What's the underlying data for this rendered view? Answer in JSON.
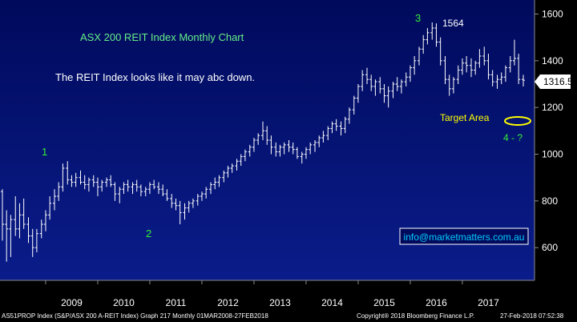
{
  "chart_data": {
    "type": "ohlc",
    "title": "ASX 200 REIT Index Monthly Chart",
    "annotation": "The REIT Index looks like it may abc down.",
    "x_labels": [
      "2009",
      "2010",
      "2011",
      "2012",
      "2013",
      "2014",
      "2015",
      "2016",
      "2017"
    ],
    "y_ticks": [
      600,
      800,
      1000,
      1200,
      1400,
      1600
    ],
    "ylim": [
      460,
      1660
    ],
    "grid": false,
    "last_value": "1316.5",
    "peak_label": "1564",
    "wave_labels": [
      "1",
      "2",
      "3",
      "4 - ?"
    ],
    "target_label": "Target Area",
    "website": "info@marketmatters.com.au",
    "series": [
      {
        "values": [
          [
            2008.17,
            840,
            850,
            630,
            700
          ],
          [
            2008.25,
            700,
            760,
            540,
            680
          ],
          [
            2008.33,
            680,
            740,
            560,
            720
          ],
          [
            2008.42,
            720,
            820,
            650,
            680
          ],
          [
            2008.5,
            680,
            790,
            640,
            740
          ],
          [
            2008.58,
            740,
            810,
            680,
            700
          ],
          [
            2008.67,
            700,
            730,
            620,
            650
          ],
          [
            2008.75,
            650,
            680,
            560,
            600
          ],
          [
            2008.83,
            600,
            680,
            580,
            660
          ],
          [
            2008.92,
            660,
            720,
            640,
            700
          ],
          [
            2009.0,
            700,
            760,
            670,
            740
          ],
          [
            2009.08,
            740,
            820,
            720,
            790
          ],
          [
            2009.17,
            790,
            850,
            760,
            820
          ],
          [
            2009.25,
            820,
            880,
            800,
            860
          ],
          [
            2009.33,
            860,
            960,
            840,
            940
          ],
          [
            2009.42,
            940,
            970,
            870,
            890
          ],
          [
            2009.5,
            890,
            910,
            860,
            880
          ],
          [
            2009.58,
            880,
            920,
            860,
            900
          ],
          [
            2009.67,
            900,
            930,
            870,
            880
          ],
          [
            2009.75,
            880,
            910,
            850,
            870
          ],
          [
            2009.83,
            870,
            900,
            840,
            890
          ],
          [
            2009.92,
            890,
            910,
            860,
            880
          ],
          [
            2010.0,
            880,
            900,
            820,
            860
          ],
          [
            2010.08,
            860,
            890,
            840,
            880
          ],
          [
            2010.17,
            880,
            900,
            860,
            890
          ],
          [
            2010.25,
            890,
            910,
            860,
            870
          ],
          [
            2010.33,
            870,
            880,
            800,
            830
          ],
          [
            2010.42,
            830,
            860,
            790,
            850
          ],
          [
            2010.5,
            850,
            880,
            830,
            870
          ],
          [
            2010.58,
            870,
            890,
            840,
            860
          ],
          [
            2010.67,
            860,
            880,
            830,
            870
          ],
          [
            2010.75,
            870,
            890,
            840,
            860
          ],
          [
            2010.83,
            860,
            870,
            820,
            840
          ],
          [
            2010.92,
            840,
            860,
            820,
            850
          ],
          [
            2011.0,
            850,
            880,
            830,
            870
          ],
          [
            2011.08,
            870,
            890,
            850,
            860
          ],
          [
            2011.17,
            860,
            880,
            830,
            850
          ],
          [
            2011.25,
            850,
            870,
            820,
            830
          ],
          [
            2011.33,
            830,
            850,
            800,
            810
          ],
          [
            2011.42,
            810,
            830,
            770,
            790
          ],
          [
            2011.5,
            790,
            810,
            760,
            780
          ],
          [
            2011.58,
            780,
            800,
            700,
            750
          ],
          [
            2011.67,
            750,
            790,
            720,
            770
          ],
          [
            2011.75,
            770,
            800,
            750,
            790
          ],
          [
            2011.83,
            790,
            810,
            770,
            800
          ],
          [
            2011.92,
            800,
            830,
            780,
            820
          ],
          [
            2012.0,
            820,
            840,
            800,
            830
          ],
          [
            2012.08,
            830,
            860,
            810,
            850
          ],
          [
            2012.17,
            850,
            880,
            830,
            870
          ],
          [
            2012.25,
            870,
            900,
            850,
            880
          ],
          [
            2012.33,
            880,
            910,
            860,
            900
          ],
          [
            2012.42,
            900,
            930,
            880,
            920
          ],
          [
            2012.5,
            920,
            950,
            900,
            940
          ],
          [
            2012.58,
            940,
            960,
            920,
            950
          ],
          [
            2012.67,
            950,
            980,
            930,
            970
          ],
          [
            2012.75,
            970,
            1000,
            950,
            990
          ],
          [
            2012.83,
            990,
            1020,
            970,
            1010
          ],
          [
            2012.92,
            1010,
            1040,
            990,
            1030
          ],
          [
            2013.0,
            1030,
            1070,
            1010,
            1060
          ],
          [
            2013.08,
            1060,
            1090,
            1040,
            1080
          ],
          [
            2013.17,
            1080,
            1140,
            1060,
            1100
          ],
          [
            2013.25,
            1100,
            1120,
            1040,
            1060
          ],
          [
            2013.33,
            1060,
            1080,
            1000,
            1030
          ],
          [
            2013.42,
            1030,
            1050,
            990,
            1010
          ],
          [
            2013.5,
            1010,
            1040,
            990,
            1030
          ],
          [
            2013.58,
            1030,
            1050,
            1000,
            1040
          ],
          [
            2013.67,
            1040,
            1060,
            1010,
            1030
          ],
          [
            2013.75,
            1030,
            1050,
            1000,
            1020
          ],
          [
            2013.83,
            1020,
            1030,
            980,
            990
          ],
          [
            2013.92,
            990,
            1010,
            960,
            1000
          ],
          [
            2014.0,
            1000,
            1030,
            980,
            1020
          ],
          [
            2014.08,
            1020,
            1050,
            1000,
            1040
          ],
          [
            2014.17,
            1040,
            1060,
            1010,
            1050
          ],
          [
            2014.25,
            1050,
            1080,
            1030,
            1070
          ],
          [
            2014.33,
            1070,
            1100,
            1050,
            1080
          ],
          [
            2014.42,
            1080,
            1120,
            1060,
            1110
          ],
          [
            2014.5,
            1110,
            1140,
            1090,
            1130
          ],
          [
            2014.58,
            1130,
            1150,
            1100,
            1120
          ],
          [
            2014.67,
            1120,
            1140,
            1080,
            1110
          ],
          [
            2014.75,
            1110,
            1160,
            1090,
            1150
          ],
          [
            2014.83,
            1150,
            1200,
            1130,
            1190
          ],
          [
            2014.92,
            1190,
            1250,
            1170,
            1240
          ],
          [
            2015.0,
            1240,
            1300,
            1220,
            1290
          ],
          [
            2015.08,
            1290,
            1360,
            1270,
            1340
          ],
          [
            2015.17,
            1340,
            1370,
            1300,
            1320
          ],
          [
            2015.25,
            1320,
            1340,
            1270,
            1290
          ],
          [
            2015.33,
            1290,
            1320,
            1250,
            1310
          ],
          [
            2015.42,
            1310,
            1330,
            1260,
            1280
          ],
          [
            2015.5,
            1280,
            1300,
            1220,
            1250
          ],
          [
            2015.58,
            1250,
            1290,
            1200,
            1270
          ],
          [
            2015.67,
            1270,
            1310,
            1240,
            1300
          ],
          [
            2015.75,
            1300,
            1330,
            1270,
            1290
          ],
          [
            2015.83,
            1290,
            1320,
            1260,
            1310
          ],
          [
            2015.92,
            1310,
            1350,
            1290,
            1330
          ],
          [
            2016.0,
            1330,
            1380,
            1310,
            1370
          ],
          [
            2016.08,
            1370,
            1420,
            1340,
            1400
          ],
          [
            2016.17,
            1400,
            1460,
            1380,
            1450
          ],
          [
            2016.25,
            1450,
            1510,
            1430,
            1490
          ],
          [
            2016.33,
            1490,
            1540,
            1470,
            1520
          ],
          [
            2016.42,
            1520,
            1564,
            1490,
            1540
          ],
          [
            2016.5,
            1540,
            1560,
            1460,
            1480
          ],
          [
            2016.58,
            1480,
            1500,
            1380,
            1400
          ],
          [
            2016.67,
            1400,
            1420,
            1300,
            1320
          ],
          [
            2016.75,
            1320,
            1340,
            1250,
            1280
          ],
          [
            2016.83,
            1280,
            1330,
            1260,
            1320
          ],
          [
            2016.92,
            1320,
            1380,
            1300,
            1360
          ],
          [
            2017.0,
            1360,
            1410,
            1340,
            1390
          ],
          [
            2017.08,
            1390,
            1420,
            1350,
            1380
          ],
          [
            2017.17,
            1380,
            1410,
            1330,
            1360
          ],
          [
            2017.25,
            1360,
            1400,
            1340,
            1390
          ],
          [
            2017.33,
            1390,
            1450,
            1370,
            1420
          ],
          [
            2017.42,
            1420,
            1460,
            1380,
            1400
          ],
          [
            2017.5,
            1400,
            1430,
            1320,
            1340
          ],
          [
            2017.58,
            1340,
            1360,
            1290,
            1310
          ],
          [
            2017.67,
            1310,
            1340,
            1280,
            1320
          ],
          [
            2017.75,
            1320,
            1350,
            1300,
            1330
          ],
          [
            2017.83,
            1330,
            1380,
            1310,
            1370
          ],
          [
            2017.92,
            1370,
            1420,
            1350,
            1400
          ],
          [
            2018.0,
            1400,
            1490,
            1380,
            1410
          ],
          [
            2018.08,
            1410,
            1430,
            1300,
            1320
          ],
          [
            2018.17,
            1320,
            1340,
            1290,
            1316.5
          ]
        ]
      }
    ]
  },
  "footer": {
    "left": "AS51PROP Index (S&P/ASX 200 A-REIT Index) Graph 217  Monthly 01MAR2008-27FEB2018",
    "middle": "Copyright® 2018 Bloomberg Finance L.P.",
    "right": "27-Feb-2018 07:52:38"
  },
  "colors": {
    "background_top": "#000a5c",
    "background_bottom": "#0a1c8a",
    "bars": "#ffffff",
    "title_text": "#66ee88",
    "wave_label": "#33ee33",
    "target_text": "#ffff00",
    "email_text": "#00ccff"
  }
}
